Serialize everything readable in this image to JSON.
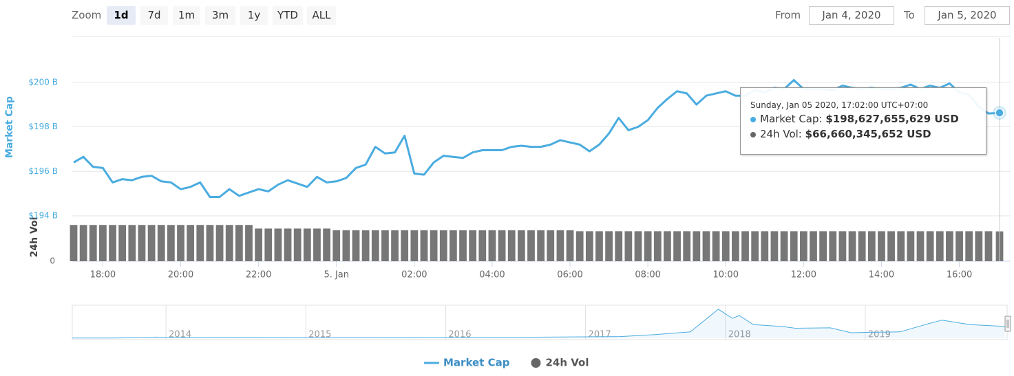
{
  "range_selector": {
    "zoom_label": "Zoom",
    "buttons": [
      "1d",
      "7d",
      "1m",
      "3m",
      "1y",
      "YTD",
      "ALL"
    ],
    "selected": "1d",
    "from_label": "From",
    "from_value": "Jan 4, 2020",
    "to_label": "To",
    "to_value": "Jan 5, 2020"
  },
  "chart_data": {
    "type": "line",
    "y_label": "Market Cap",
    "y2_label": "24h Vol",
    "x": [
      "2020-01-04T17:15",
      "2020-01-04T17:30",
      "2020-01-04T17:45",
      "2020-01-04T18:00",
      "2020-01-04T18:15",
      "2020-01-04T18:30",
      "2020-01-04T18:45",
      "2020-01-04T19:00",
      "2020-01-04T19:15",
      "2020-01-04T19:30",
      "2020-01-04T19:45",
      "2020-01-04T20:00",
      "2020-01-04T20:15",
      "2020-01-04T20:30",
      "2020-01-04T20:45",
      "2020-01-04T21:00",
      "2020-01-04T21:15",
      "2020-01-04T21:30",
      "2020-01-04T21:45",
      "2020-01-04T22:00",
      "2020-01-04T22:15",
      "2020-01-04T22:30",
      "2020-01-04T22:45",
      "2020-01-04T23:00",
      "2020-01-04T23:15",
      "2020-01-04T23:30",
      "2020-01-04T23:45",
      "2020-01-05T00:00",
      "2020-01-05T00:15",
      "2020-01-05T00:30",
      "2020-01-05T00:45",
      "2020-01-05T01:00",
      "2020-01-05T01:15",
      "2020-01-05T01:30",
      "2020-01-05T01:45",
      "2020-01-05T02:00",
      "2020-01-05T02:15",
      "2020-01-05T02:30",
      "2020-01-05T02:45",
      "2020-01-05T03:00",
      "2020-01-05T03:15",
      "2020-01-05T03:30",
      "2020-01-05T03:45",
      "2020-01-05T04:00",
      "2020-01-05T04:15",
      "2020-01-05T04:30",
      "2020-01-05T04:45",
      "2020-01-05T05:00",
      "2020-01-05T05:15",
      "2020-01-05T05:30",
      "2020-01-05T05:45",
      "2020-01-05T06:00",
      "2020-01-05T06:15",
      "2020-01-05T06:30",
      "2020-01-05T06:45",
      "2020-01-05T07:00",
      "2020-01-05T07:15",
      "2020-01-05T07:30",
      "2020-01-05T07:45",
      "2020-01-05T08:00",
      "2020-01-05T08:15",
      "2020-01-05T08:30",
      "2020-01-05T08:45",
      "2020-01-05T09:00",
      "2020-01-05T09:15",
      "2020-01-05T09:30",
      "2020-01-05T09:45",
      "2020-01-05T10:00",
      "2020-01-05T10:15",
      "2020-01-05T10:30",
      "2020-01-05T10:45",
      "2020-01-05T11:00",
      "2020-01-05T11:15",
      "2020-01-05T11:30",
      "2020-01-05T11:45",
      "2020-01-05T12:00",
      "2020-01-05T12:15",
      "2020-01-05T12:30",
      "2020-01-05T12:45",
      "2020-01-05T13:00",
      "2020-01-05T13:15",
      "2020-01-05T13:30",
      "2020-01-05T13:45",
      "2020-01-05T14:00",
      "2020-01-05T14:15",
      "2020-01-05T14:30",
      "2020-01-05T14:45",
      "2020-01-05T15:00",
      "2020-01-05T15:15",
      "2020-01-05T15:30",
      "2020-01-05T15:45",
      "2020-01-05T16:00",
      "2020-01-05T16:15",
      "2020-01-05T16:30",
      "2020-01-05T16:45",
      "2020-01-05T17:02"
    ],
    "series": [
      {
        "name": "Market Cap",
        "color": "#4aace0",
        "values": [
          196.4,
          196.65,
          196.2,
          196.15,
          195.5,
          195.65,
          195.6,
          195.75,
          195.8,
          195.55,
          195.5,
          195.2,
          195.3,
          195.5,
          194.85,
          194.85,
          195.2,
          194.9,
          195.05,
          195.2,
          195.1,
          195.4,
          195.6,
          195.45,
          195.3,
          195.75,
          195.5,
          195.55,
          195.7,
          196.15,
          196.3,
          197.1,
          196.8,
          196.85,
          197.6,
          195.9,
          195.85,
          196.4,
          196.7,
          196.65,
          196.6,
          196.85,
          196.95,
          196.95,
          196.95,
          197.1,
          197.15,
          197.1,
          197.1,
          197.2,
          197.4,
          197.3,
          197.2,
          196.9,
          197.2,
          197.7,
          198.4,
          197.85,
          198.0,
          198.3,
          198.85,
          199.25,
          199.6,
          199.5,
          199.0,
          199.4,
          199.5,
          199.6,
          199.4,
          199.4,
          199.65,
          199.55,
          199.75,
          199.7,
          200.1,
          199.7,
          199.7,
          199.7,
          199.65,
          199.85,
          199.75,
          199.7,
          199.75,
          199.7,
          199.7,
          199.75,
          199.9,
          199.7,
          199.85,
          199.75,
          199.95,
          199.55,
          199.45,
          198.9,
          198.6,
          198.627655629
        ]
      },
      {
        "name": "24h Vol",
        "type": "column",
        "axis": "y2",
        "color": "#777777",
        "values": [
          81,
          81,
          81,
          81,
          81,
          81,
          81,
          81,
          81,
          81,
          81,
          81,
          81,
          81,
          81,
          81,
          81,
          81,
          81,
          73,
          73,
          73,
          73,
          73,
          73,
          73,
          73,
          69,
          69,
          69,
          69,
          69,
          69,
          69,
          69,
          69,
          69,
          69,
          69,
          69,
          69,
          69,
          69,
          69,
          69,
          69,
          69,
          69,
          69,
          69,
          69,
          69,
          67,
          67,
          67,
          67,
          67,
          67,
          67,
          67,
          67,
          67,
          67,
          67,
          67,
          67,
          67,
          67,
          67,
          67,
          67,
          67,
          67,
          67,
          67,
          67,
          67,
          67,
          67,
          67,
          67,
          67,
          67,
          67,
          67,
          67,
          67,
          67,
          67,
          67,
          67,
          67,
          67,
          67,
          67,
          66.660345652
        ]
      }
    ],
    "xlim": [
      "2020-01-04T17:15",
      "2020-01-05T17:02"
    ],
    "xticks": [
      {
        "value": "2020-01-04T18:00",
        "label": "18:00"
      },
      {
        "value": "2020-01-04T20:00",
        "label": "20:00"
      },
      {
        "value": "2020-01-04T22:00",
        "label": "22:00"
      },
      {
        "value": "2020-01-05T00:00",
        "label": "5. Jan"
      },
      {
        "value": "2020-01-05T02:00",
        "label": "02:00"
      },
      {
        "value": "2020-01-05T04:00",
        "label": "04:00"
      },
      {
        "value": "2020-01-05T06:00",
        "label": "06:00"
      },
      {
        "value": "2020-01-05T08:00",
        "label": "08:00"
      },
      {
        "value": "2020-01-05T10:00",
        "label": "10:00"
      },
      {
        "value": "2020-01-05T12:00",
        "label": "12:00"
      },
      {
        "value": "2020-01-05T14:00",
        "label": "14:00"
      },
      {
        "value": "2020-01-05T16:00",
        "label": "16:00"
      }
    ],
    "ylim": [
      194,
      202
    ],
    "yticks": [
      {
        "value": 194,
        "label": "$194 B"
      },
      {
        "value": 196,
        "label": "$196 B"
      },
      {
        "value": 198,
        "label": "$198 B"
      },
      {
        "value": 200,
        "label": "$200 B"
      }
    ],
    "y2lim": [
      0,
      86
    ],
    "y2ticks": [
      0
    ],
    "grid": true,
    "tooltip": {
      "title": "Sunday, Jan 05 2020, 17:02:00 UTC+07:00",
      "lines": [
        {
          "label": "Market Cap:",
          "value": "$198,627,655,629 USD"
        },
        {
          "label": "24h Vol:",
          "value": "$66,660,345,652 USD"
        }
      ]
    },
    "navigator": {
      "x": [
        2013.33,
        2013.6,
        2013.83,
        2013.92,
        2014.0,
        2014.25,
        2014.5,
        2014.75,
        2015.0,
        2015.5,
        2016.0,
        2016.5,
        2017.0,
        2017.25,
        2017.5,
        2017.75,
        2017.95,
        2018.05,
        2018.1,
        2018.2,
        2018.4,
        2018.5,
        2018.75,
        2018.9,
        2019.0,
        2019.25,
        2019.45,
        2019.55,
        2019.75,
        2020.0
      ],
      "values": [
        1.5,
        1.5,
        5,
        12,
        10,
        6,
        8,
        5,
        3.5,
        4,
        6,
        10,
        15,
        18,
        40,
        70,
        320,
        220,
        250,
        150,
        130,
        110,
        115,
        60,
        65,
        70,
        160,
        200,
        150,
        130
      ],
      "xlim": [
        2013.33,
        2020.0
      ],
      "ylim": [
        0,
        350
      ],
      "xticks": [
        2014,
        2015,
        2016,
        2017,
        2018,
        2019
      ]
    }
  }
}
